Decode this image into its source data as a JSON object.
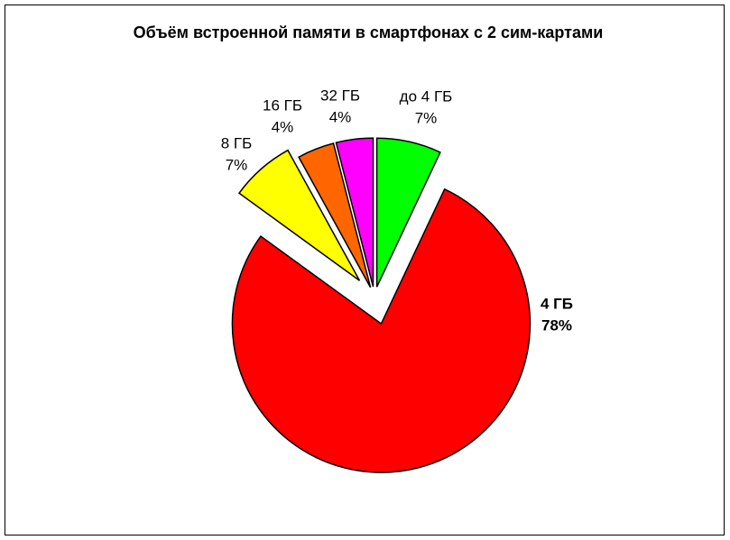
{
  "chart_data": {
    "type": "pie",
    "title": "Объём встроенной памяти в смартфонах с 2 сим-картами",
    "categories": [
      "до 4 ГБ",
      "4 ГБ",
      "8 ГБ",
      "16 ГБ",
      "32 ГБ"
    ],
    "values": [
      7,
      78,
      7,
      4,
      4
    ],
    "value_labels": [
      "7%",
      "78%",
      "7%",
      "4%",
      "4%"
    ],
    "colors": [
      "#00ff00",
      "#ff0000",
      "#ffff00",
      "#ff6600",
      "#ff00ff"
    ]
  }
}
